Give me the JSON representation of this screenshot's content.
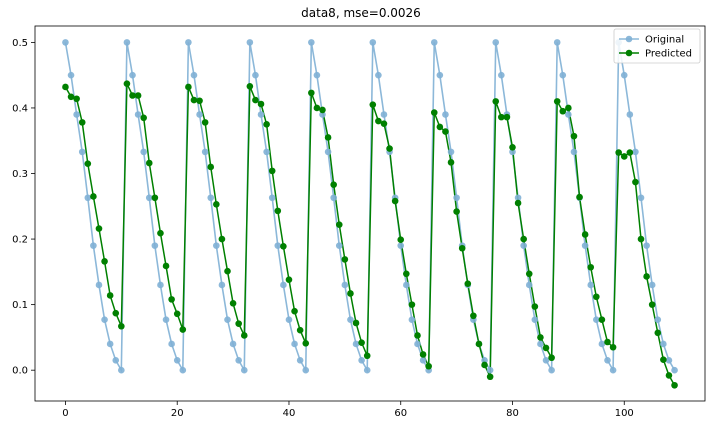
{
  "chart_data": {
    "type": "line",
    "title": "data8, mse=0.0026",
    "xlabel": "",
    "ylabel": "",
    "xlim": [
      -5.45,
      114.45
    ],
    "ylim": [
      -0.047,
      0.525
    ],
    "xticks": [
      0,
      20,
      40,
      60,
      80,
      100
    ],
    "yticks": [
      0.0,
      0.1,
      0.2,
      0.3,
      0.4,
      0.5
    ],
    "ytick_labels": [
      "0.0",
      "0.1",
      "0.2",
      "0.3",
      "0.4",
      "0.5"
    ],
    "grid": false,
    "legend_position": "top-right",
    "series": [
      {
        "name": "Original",
        "color": "#7fb0d5",
        "marker": "circle",
        "x": [
          0,
          1,
          2,
          3,
          4,
          5,
          6,
          7,
          8,
          9,
          10,
          11,
          12,
          13,
          14,
          15,
          16,
          17,
          18,
          19,
          20,
          21,
          22,
          23,
          24,
          25,
          26,
          27,
          28,
          29,
          30,
          31,
          32,
          33,
          34,
          35,
          36,
          37,
          38,
          39,
          40,
          41,
          42,
          43,
          44,
          45,
          46,
          47,
          48,
          49,
          50,
          51,
          52,
          53,
          54,
          55,
          56,
          57,
          58,
          59,
          60,
          61,
          62,
          63,
          64,
          65,
          66,
          67,
          68,
          69,
          70,
          71,
          72,
          73,
          74,
          75,
          76,
          77,
          78,
          79,
          80,
          81,
          82,
          83,
          84,
          85,
          86,
          87,
          88,
          89,
          90,
          91,
          92,
          93,
          94,
          95,
          96,
          97,
          98,
          99,
          100,
          101,
          102,
          103,
          104,
          105,
          106,
          107,
          108,
          109
        ],
        "y": [
          0.5,
          0.45,
          0.39,
          0.333,
          0.263,
          0.19,
          0.13,
          0.077,
          0.04,
          0.015,
          0.0,
          0.5,
          0.45,
          0.39,
          0.333,
          0.263,
          0.19,
          0.13,
          0.077,
          0.04,
          0.015,
          0.0,
          0.5,
          0.45,
          0.39,
          0.333,
          0.263,
          0.19,
          0.13,
          0.077,
          0.04,
          0.015,
          0.0,
          0.5,
          0.45,
          0.39,
          0.333,
          0.263,
          0.19,
          0.13,
          0.077,
          0.04,
          0.015,
          0.0,
          0.5,
          0.45,
          0.39,
          0.333,
          0.263,
          0.19,
          0.13,
          0.077,
          0.04,
          0.015,
          0.0,
          0.5,
          0.45,
          0.39,
          0.333,
          0.263,
          0.19,
          0.13,
          0.077,
          0.04,
          0.015,
          0.0,
          0.5,
          0.45,
          0.39,
          0.333,
          0.263,
          0.19,
          0.13,
          0.077,
          0.04,
          0.015,
          0.0,
          0.5,
          0.45,
          0.39,
          0.333,
          0.263,
          0.19,
          0.13,
          0.077,
          0.04,
          0.015,
          0.0,
          0.5,
          0.45,
          0.39,
          0.333,
          0.263,
          0.19,
          0.13,
          0.077,
          0.04,
          0.015,
          0.0,
          0.5,
          0.45,
          0.39,
          0.333,
          0.263,
          0.19,
          0.13,
          0.077,
          0.04,
          0.015,
          0.0
        ]
      },
      {
        "name": "Predicted",
        "color": "#008000",
        "marker": "circle",
        "x": [
          0,
          1,
          2,
          3,
          4,
          5,
          6,
          7,
          8,
          9,
          10,
          11,
          12,
          13,
          14,
          15,
          16,
          17,
          18,
          19,
          20,
          21,
          22,
          23,
          24,
          25,
          26,
          27,
          28,
          29,
          30,
          31,
          32,
          33,
          34,
          35,
          36,
          37,
          38,
          39,
          40,
          41,
          42,
          43,
          44,
          45,
          46,
          47,
          48,
          49,
          50,
          51,
          52,
          53,
          54,
          55,
          56,
          57,
          58,
          59,
          60,
          61,
          62,
          63,
          64,
          65,
          66,
          67,
          68,
          69,
          70,
          71,
          72,
          73,
          74,
          75,
          76,
          77,
          78,
          79,
          80,
          81,
          82,
          83,
          84,
          85,
          86,
          87,
          88,
          89,
          90,
          91,
          92,
          93,
          94,
          95,
          96,
          97,
          98,
          99,
          100,
          101,
          102,
          103,
          104,
          105,
          106,
          107,
          108,
          109
        ],
        "y": [
          0.432,
          0.417,
          0.414,
          0.378,
          0.315,
          0.265,
          0.216,
          0.166,
          0.114,
          0.087,
          0.067,
          0.437,
          0.419,
          0.419,
          0.385,
          0.316,
          0.263,
          0.209,
          0.159,
          0.108,
          0.086,
          0.062,
          0.432,
          0.412,
          0.411,
          0.378,
          0.31,
          0.253,
          0.2,
          0.151,
          0.102,
          0.071,
          0.053,
          0.433,
          0.412,
          0.406,
          0.375,
          0.304,
          0.243,
          0.189,
          0.138,
          0.09,
          0.061,
          0.041,
          0.423,
          0.4,
          0.397,
          0.355,
          0.283,
          0.222,
          0.169,
          0.117,
          0.072,
          0.042,
          0.022,
          0.405,
          0.38,
          0.376,
          0.338,
          0.258,
          0.199,
          0.147,
          0.1,
          0.053,
          0.024,
          0.006,
          0.393,
          0.371,
          0.364,
          0.317,
          0.242,
          0.186,
          0.132,
          0.083,
          0.04,
          0.008,
          -0.01,
          0.41,
          0.386,
          0.386,
          0.34,
          0.255,
          0.2,
          0.147,
          0.097,
          0.05,
          0.034,
          0.019,
          0.41,
          0.395,
          0.4,
          0.357,
          0.264,
          0.207,
          0.157,
          0.112,
          0.077,
          0.043,
          0.035,
          0.332,
          0.326,
          0.332,
          0.287,
          0.2,
          0.143,
          0.1,
          0.057,
          0.016,
          -0.008,
          -0.023
        ]
      }
    ]
  }
}
